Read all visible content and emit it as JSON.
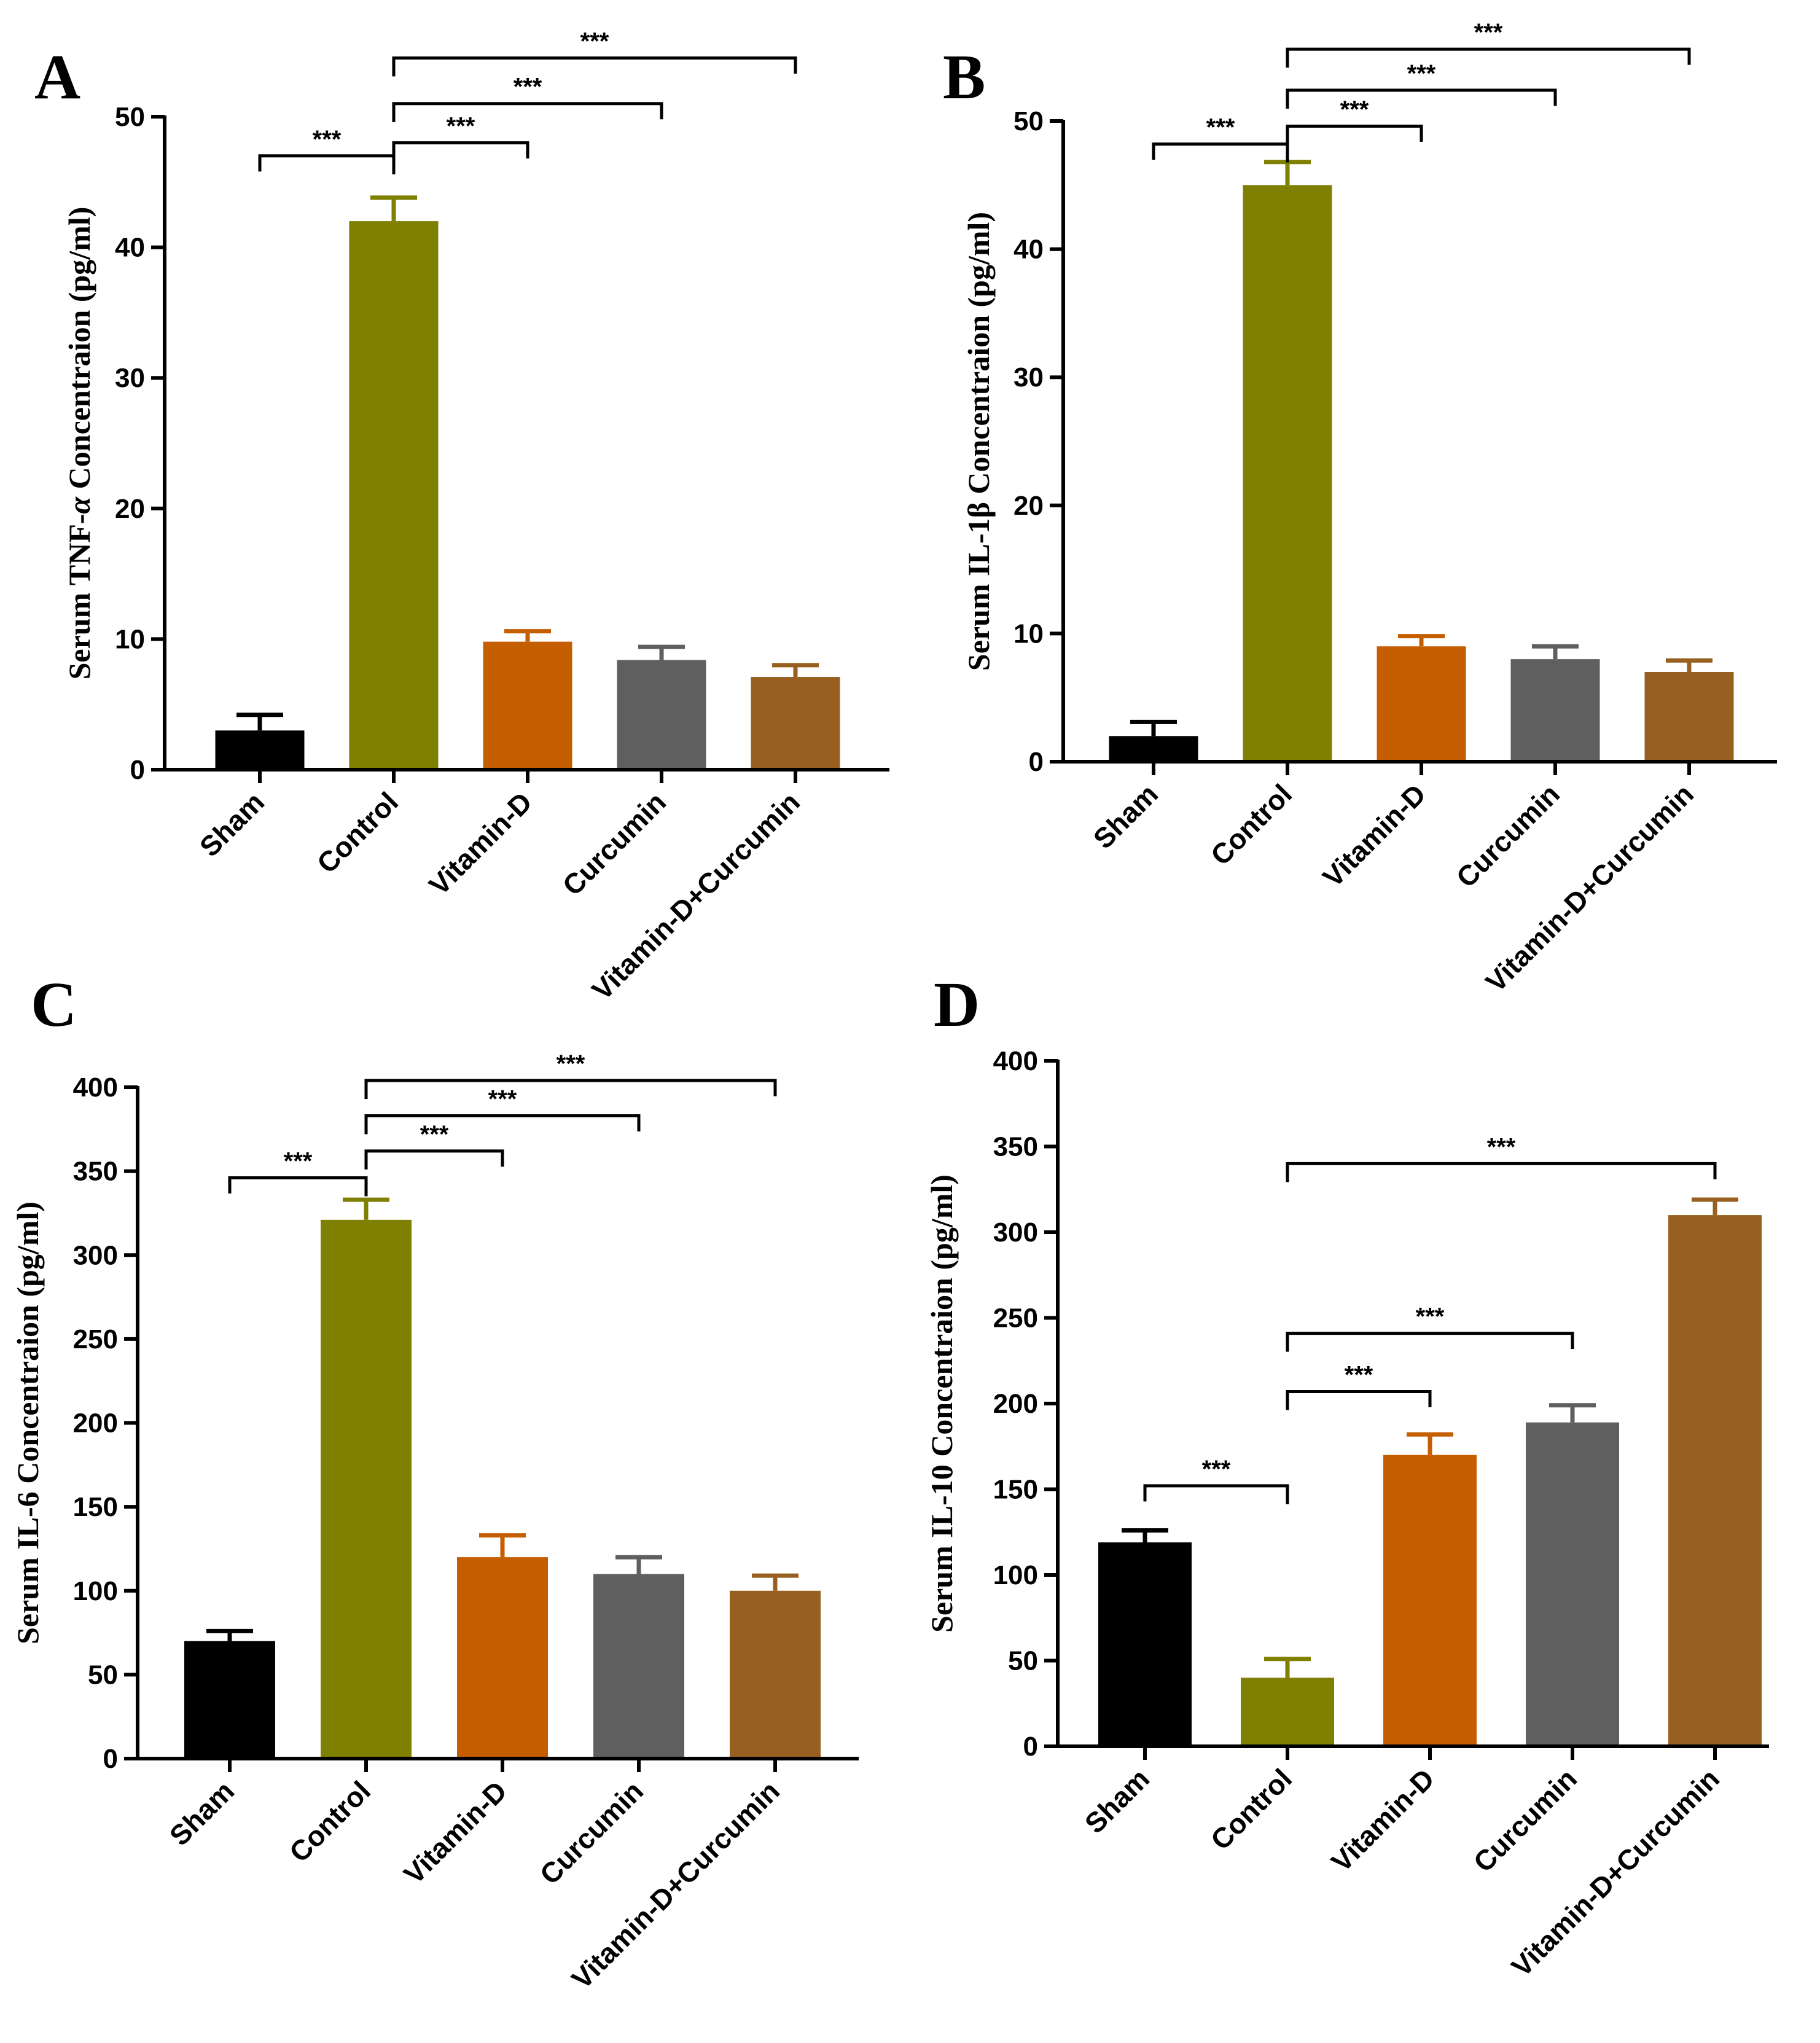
{
  "colors": {
    "Sham": "#000000",
    "Control": "#7f7f00",
    "Vitamin-D": "#c55e00",
    "Curcumin": "#5f5f5f",
    "Vitamin-D+Curcumin": "#976021",
    "axis": "#000000"
  },
  "chart_data": [
    {
      "panel": "A",
      "type": "bar",
      "ylabel_prefix": "Serum TNF-",
      "ylabel_symbol": "α",
      "ylabel_suffix": " Concentraion (pg/ml)",
      "categories": [
        "Sham",
        "Control",
        "Vitamin-D",
        "Curcumin",
        "Vitamin-D+Curcumin"
      ],
      "values": [
        3,
        42,
        9.8,
        8.4,
        7.1
      ],
      "errors": [
        1.2,
        1.8,
        0.8,
        1.0,
        0.9
      ],
      "ylim": [
        0,
        50
      ],
      "yticks": [
        0,
        10,
        20,
        30,
        40,
        50
      ],
      "comparisons": [
        {
          "from": 0,
          "to": 1,
          "label": "***",
          "level": 47,
          "toward": "to"
        },
        {
          "from": 1,
          "to": 2,
          "label": "***",
          "level": 48,
          "toward": "from"
        },
        {
          "from": 1,
          "to": 3,
          "label": "***",
          "level": 51,
          "toward": "from"
        },
        {
          "from": 1,
          "to": 4,
          "label": "***",
          "level": 54.5,
          "toward": "from"
        }
      ]
    },
    {
      "panel": "B",
      "type": "bar",
      "ylabel_prefix": "Serum IL-1β",
      "ylabel_symbol": "",
      "ylabel_suffix": " Concentraion (pg/ml)",
      "categories": [
        "Sham",
        "Control",
        "Vitamin-D",
        "Curcumin",
        "Vitamin-D+Curcumin"
      ],
      "values": [
        2,
        45,
        9,
        8,
        7
      ],
      "errors": [
        1.1,
        1.8,
        0.8,
        1.0,
        0.9
      ],
      "ylim": [
        0,
        50
      ],
      "yticks": [
        0,
        10,
        20,
        30,
        40,
        50
      ],
      "comparisons": [
        {
          "from": 0,
          "to": 1,
          "label": "***",
          "level": 48.2,
          "toward": "to"
        },
        {
          "from": 1,
          "to": 2,
          "label": "***",
          "level": 49.6,
          "toward": "from"
        },
        {
          "from": 1,
          "to": 3,
          "label": "***",
          "level": 52.4,
          "toward": "from"
        },
        {
          "from": 1,
          "to": 4,
          "label": "***",
          "level": 55.6,
          "toward": "from"
        }
      ]
    },
    {
      "panel": "C",
      "type": "bar",
      "ylabel_prefix": "Serum IL-6 Concentraion (pg/ml)",
      "ylabel_symbol": "",
      "ylabel_suffix": "",
      "categories": [
        "Sham",
        "Control",
        "Vitamin-D",
        "Curcumin",
        "Vitamin-D+Curcumin"
      ],
      "values": [
        70,
        321,
        120,
        110,
        100
      ],
      "errors": [
        6,
        12,
        13,
        10,
        9
      ],
      "ylim": [
        0,
        400
      ],
      "yticks": [
        0,
        50,
        100,
        150,
        200,
        250,
        300,
        350,
        400
      ],
      "comparisons": [
        {
          "from": 0,
          "to": 1,
          "label": "***",
          "level": 346,
          "toward": "to"
        },
        {
          "from": 1,
          "to": 2,
          "label": "***",
          "level": 362,
          "toward": "from"
        },
        {
          "from": 1,
          "to": 3,
          "label": "***",
          "level": 383,
          "toward": "from"
        },
        {
          "from": 1,
          "to": 4,
          "label": "***",
          "level": 404,
          "toward": "from"
        }
      ]
    },
    {
      "panel": "D",
      "type": "bar",
      "ylabel_prefix": "Serum IL-10 Concentraion (pg/ml)",
      "ylabel_symbol": "",
      "ylabel_suffix": "",
      "categories": [
        "Sham",
        "Control",
        "Vitamin-D",
        "Curcumin",
        "Vitamin-D+Curcumin"
      ],
      "values": [
        119,
        40,
        170,
        189,
        310
      ],
      "errors": [
        7,
        11,
        12,
        10,
        9
      ],
      "ylim": [
        0,
        400
      ],
      "yticks": [
        0,
        50,
        100,
        150,
        200,
        250,
        300,
        350,
        400
      ],
      "comparisons": [
        {
          "from": 0,
          "to": 1,
          "label": "***",
          "level": 152,
          "toward": "to"
        },
        {
          "from": 1,
          "to": 2,
          "label": "***",
          "level": 207,
          "toward": "from"
        },
        {
          "from": 1,
          "to": 3,
          "label": "***",
          "level": 241,
          "toward": "from"
        },
        {
          "from": 1,
          "to": 4,
          "label": "***",
          "level": 340,
          "toward": "from"
        }
      ]
    }
  ]
}
